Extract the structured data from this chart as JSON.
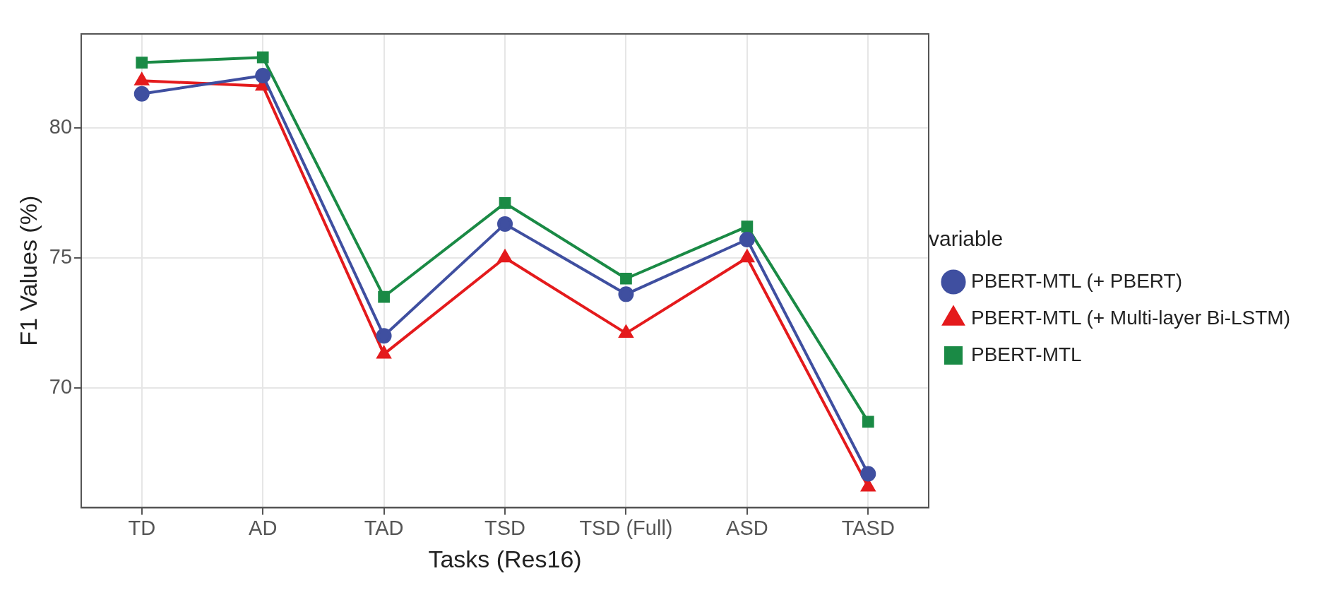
{
  "chart_data": {
    "type": "line",
    "xlabel": "Tasks (Res16)",
    "ylabel": "F1 Values (%)",
    "legend_title": "variable",
    "legend": "right",
    "grid": true,
    "categories": [
      "TD",
      "AD",
      "TAD",
      "TSD",
      "TSD (Full)",
      "ASD",
      "TASD"
    ],
    "ylim": [
      65.4,
      83.6
    ],
    "yticks": [
      70,
      75,
      80
    ],
    "series": [
      {
        "name": "PBERT-MTL (+ PBERT)",
        "color": "#3f4fa0",
        "marker": "circle",
        "values": [
          81.3,
          82.0,
          72.0,
          76.3,
          73.6,
          75.7,
          66.7
        ]
      },
      {
        "name": "PBERT-MTL (+ Multi-layer Bi-LSTM)",
        "color": "#e41a1c",
        "marker": "triangle",
        "values": [
          81.8,
          81.6,
          71.3,
          75.0,
          72.1,
          75.0,
          66.2
        ]
      },
      {
        "name": "PBERT-MTL",
        "color": "#1a8a45",
        "marker": "square",
        "values": [
          82.5,
          82.7,
          73.5,
          77.1,
          74.2,
          76.2,
          68.7
        ]
      }
    ]
  }
}
